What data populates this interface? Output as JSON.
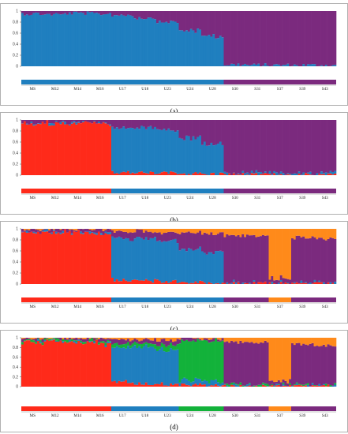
{
  "colors": {
    "blue": "#1f7fbf",
    "purple": "#7b2a7e",
    "red": "#ff2a1a",
    "orange": "#ff8a1a",
    "green": "#13b23a",
    "label_strip_light": "#c6c6c6"
  },
  "chart_data": [
    {
      "type": "stacked_bar",
      "panel": "(a)",
      "caption": "(a)",
      "k": 2,
      "ylim": [
        0,
        1
      ],
      "yticks": [
        "0",
        "0.2",
        "0.4",
        "0.6",
        "0.8",
        "1"
      ],
      "populations": [
        "MS",
        "M12",
        "M14",
        "M16",
        "U17",
        "U18",
        "U23",
        "U24",
        "U28",
        "S30",
        "S31",
        "S37",
        "S39",
        "S43"
      ],
      "cluster_colors": [
        "blue",
        "purple"
      ],
      "population_membership": [
        [
          0.95,
          0.05
        ],
        [
          0.94,
          0.06
        ],
        [
          0.96,
          0.04
        ],
        [
          0.95,
          0.05
        ],
        [
          0.93,
          0.07
        ],
        [
          0.88,
          0.12
        ],
        [
          0.8,
          0.2
        ],
        [
          0.65,
          0.35
        ],
        [
          0.55,
          0.45
        ],
        [
          0.03,
          0.97
        ],
        [
          0.02,
          0.98
        ],
        [
          0.02,
          0.98
        ],
        [
          0.02,
          0.98
        ],
        [
          0.02,
          0.98
        ]
      ]
    },
    {
      "type": "stacked_bar",
      "panel": "(b)",
      "caption": "(b)",
      "k": 3,
      "ylim": [
        0,
        1
      ],
      "yticks": [
        "0",
        "0.2",
        "0.4",
        "0.6",
        "0.8",
        "1"
      ],
      "populations": [
        "MS",
        "M12",
        "M14",
        "M16",
        "U17",
        "U18",
        "U23",
        "U24",
        "U28",
        "S30",
        "S31",
        "S37",
        "S39",
        "S43"
      ],
      "cluster_colors": [
        "red",
        "blue",
        "purple"
      ],
      "population_membership": [
        [
          0.94,
          0.01,
          0.05
        ],
        [
          0.95,
          0.01,
          0.04
        ],
        [
          0.94,
          0.01,
          0.05
        ],
        [
          0.93,
          0.02,
          0.05
        ],
        [
          0.05,
          0.8,
          0.15
        ],
        [
          0.04,
          0.82,
          0.14
        ],
        [
          0.04,
          0.78,
          0.18
        ],
        [
          0.03,
          0.65,
          0.32
        ],
        [
          0.02,
          0.55,
          0.43
        ],
        [
          0.01,
          0.02,
          0.97
        ],
        [
          0.01,
          0.02,
          0.97
        ],
        [
          0.01,
          0.02,
          0.97
        ],
        [
          0.01,
          0.02,
          0.97
        ],
        [
          0.01,
          0.02,
          0.97
        ]
      ]
    },
    {
      "type": "stacked_bar",
      "panel": "(c)",
      "caption": "(c)",
      "k": 4,
      "ylim": [
        0,
        1
      ],
      "yticks": [
        "0",
        "0.2",
        "0.4",
        "0.6",
        "0.8",
        "1"
      ],
      "populations": [
        "MS",
        "M12",
        "M14",
        "M16",
        "U17",
        "U18",
        "U23",
        "U24",
        "U28",
        "S30",
        "S31",
        "S37",
        "S39",
        "S43"
      ],
      "cluster_colors": [
        "red",
        "blue",
        "purple",
        "orange"
      ],
      "population_membership": [
        [
          0.93,
          0.01,
          0.05,
          0.01
        ],
        [
          0.94,
          0.01,
          0.04,
          0.01
        ],
        [
          0.93,
          0.01,
          0.05,
          0.01
        ],
        [
          0.92,
          0.02,
          0.05,
          0.01
        ],
        [
          0.08,
          0.75,
          0.12,
          0.05
        ],
        [
          0.06,
          0.78,
          0.12,
          0.04
        ],
        [
          0.05,
          0.74,
          0.15,
          0.06
        ],
        [
          0.03,
          0.6,
          0.3,
          0.07
        ],
        [
          0.02,
          0.55,
          0.35,
          0.08
        ],
        [
          0.01,
          0.01,
          0.85,
          0.13
        ],
        [
          0.01,
          0.01,
          0.86,
          0.12
        ],
        [
          0.01,
          0.01,
          0.08,
          0.9
        ],
        [
          0.01,
          0.01,
          0.82,
          0.16
        ],
        [
          0.01,
          0.01,
          0.8,
          0.18
        ]
      ]
    },
    {
      "type": "stacked_bar",
      "panel": "(d)",
      "caption": "(d)",
      "k": 5,
      "ylim": [
        0,
        1
      ],
      "yticks": [
        "0",
        "0.2",
        "0.4",
        "0.6",
        "0.8",
        "1"
      ],
      "populations": [
        "MS",
        "M12",
        "M14",
        "M16",
        "U17",
        "U18",
        "U23",
        "U24",
        "U28",
        "S30",
        "S31",
        "S37",
        "S39",
        "S43"
      ],
      "cluster_colors": [
        "red",
        "blue",
        "green",
        "purple",
        "orange"
      ],
      "population_membership": [
        [
          0.92,
          0.01,
          0.02,
          0.04,
          0.01
        ],
        [
          0.93,
          0.01,
          0.02,
          0.03,
          0.01
        ],
        [
          0.92,
          0.01,
          0.02,
          0.04,
          0.01
        ],
        [
          0.9,
          0.02,
          0.03,
          0.04,
          0.01
        ],
        [
          0.1,
          0.7,
          0.08,
          0.08,
          0.04
        ],
        [
          0.06,
          0.74,
          0.07,
          0.09,
          0.04
        ],
        [
          0.05,
          0.7,
          0.1,
          0.1,
          0.05
        ],
        [
          0.03,
          0.1,
          0.8,
          0.05,
          0.02
        ],
        [
          0.02,
          0.08,
          0.84,
          0.04,
          0.02
        ],
        [
          0.01,
          0.01,
          0.02,
          0.86,
          0.1
        ],
        [
          0.01,
          0.01,
          0.02,
          0.86,
          0.1
        ],
        [
          0.01,
          0.01,
          0.01,
          0.07,
          0.9
        ],
        [
          0.01,
          0.01,
          0.02,
          0.82,
          0.14
        ],
        [
          0.01,
          0.01,
          0.02,
          0.8,
          0.16
        ]
      ]
    }
  ]
}
